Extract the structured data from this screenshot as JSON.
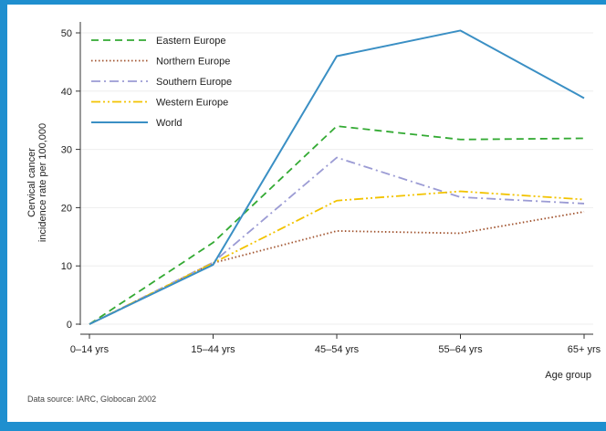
{
  "colors": {
    "frame_border": "#1f8fcf",
    "bottom_bar": "#1f8fcf",
    "background": "#ffffff",
    "grid": "#eeeeee"
  },
  "chart_data": {
    "type": "line",
    "categories": [
      "0–14 yrs",
      "15–44 yrs",
      "45–54 yrs",
      "55–64 yrs",
      "65+ yrs"
    ],
    "series": [
      {
        "name": "Eastern Europe",
        "values": [
          0,
          14,
          34,
          31.7,
          31.9
        ],
        "color": "#33aa33",
        "dash": "dashed"
      },
      {
        "name": "Northern Europe",
        "values": [
          0,
          10.5,
          16,
          15.6,
          19.3
        ],
        "color": "#a0522d",
        "dash": "dotted"
      },
      {
        "name": "Southern Europe",
        "values": [
          0,
          10.6,
          28.6,
          21.8,
          20.7
        ],
        "color": "#9b9bd4",
        "dash": "dash-dot"
      },
      {
        "name": "Western Europe",
        "values": [
          0,
          10.5,
          21.2,
          22.8,
          21.4
        ],
        "color": "#f2c300",
        "dash": "dash-dot-dot"
      },
      {
        "name": "World",
        "values": [
          0,
          10.2,
          46,
          50.4,
          38.8
        ],
        "color": "#3a8fc4",
        "dash": "solid"
      }
    ],
    "xlabel": "Age group",
    "ylabel_lines": [
      "Cervical cancer",
      "incidence rate per 100,000"
    ],
    "ylim": [
      0,
      50
    ],
    "yticks": [
      0,
      10,
      20,
      30,
      40,
      50
    ],
    "grid": true,
    "legend_position": "top-left",
    "source": "Data source: IARC, Globocan 2002"
  }
}
